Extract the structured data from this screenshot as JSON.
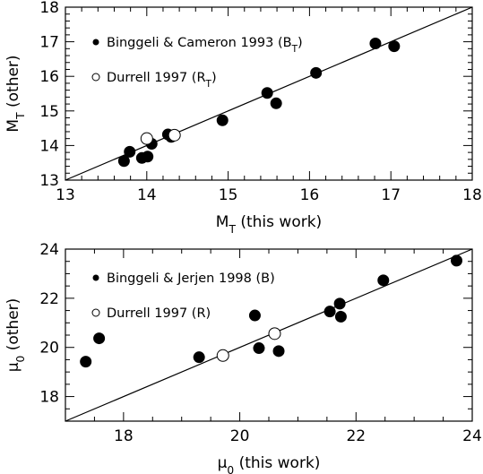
{
  "chart_data": [
    {
      "type": "scatter",
      "xlabel": "M_T (this work)",
      "ylabel": "M_T (other)",
      "xlim": [
        13,
        18
      ],
      "ylim": [
        13,
        18
      ],
      "xticks": [
        "13",
        "14",
        "15",
        "16",
        "17",
        "18"
      ],
      "yticks": [
        "13",
        "14",
        "15",
        "16",
        "17",
        "18"
      ],
      "reference_line": "y = x",
      "legend_position": "top-left",
      "series": [
        {
          "name": "Binggeli & Cameron 1993 (B_T)",
          "marker": "filled-circle",
          "points": [
            [
              13.72,
              13.55
            ],
            [
              13.79,
              13.82
            ],
            [
              13.94,
              13.64
            ],
            [
              14.01,
              13.68
            ],
            [
              14.06,
              14.05
            ],
            [
              14.26,
              14.32
            ],
            [
              14.3,
              14.25
            ],
            [
              14.93,
              14.73
            ],
            [
              15.48,
              15.52
            ],
            [
              15.59,
              15.22
            ],
            [
              16.08,
              16.1
            ],
            [
              16.81,
              16.95
            ],
            [
              17.04,
              16.87
            ]
          ]
        },
        {
          "name": "Durrell 1997 (R_T)",
          "marker": "open-circle",
          "points": [
            [
              14.0,
              14.2
            ],
            [
              14.34,
              14.3
            ]
          ]
        }
      ]
    },
    {
      "type": "scatter",
      "xlabel": "μ_0 (this work)",
      "ylabel": "μ_0 (other)",
      "xlim": [
        17,
        24
      ],
      "ylim": [
        17,
        24
      ],
      "xticks": [
        "18",
        "20",
        "22",
        "24"
      ],
      "yticks": [
        "18",
        "20",
        "22",
        "24"
      ],
      "reference_line": "y = x",
      "legend_position": "top-left",
      "series": [
        {
          "name": "Binggeli & Jerjen 1998 (B)",
          "marker": "filled-circle",
          "points": [
            [
              17.35,
              19.42
            ],
            [
              17.58,
              20.37
            ],
            [
              19.3,
              19.6
            ],
            [
              20.26,
              21.3
            ],
            [
              20.33,
              19.97
            ],
            [
              20.67,
              19.85
            ],
            [
              21.55,
              21.46
            ],
            [
              21.72,
              21.78
            ],
            [
              21.74,
              21.25
            ],
            [
              22.47,
              22.73
            ],
            [
              23.73,
              23.53
            ]
          ]
        },
        {
          "name": "Durrell 1997 (R)",
          "marker": "open-circle",
          "points": [
            [
              19.71,
              19.67
            ],
            [
              20.6,
              20.56
            ]
          ]
        }
      ]
    }
  ]
}
